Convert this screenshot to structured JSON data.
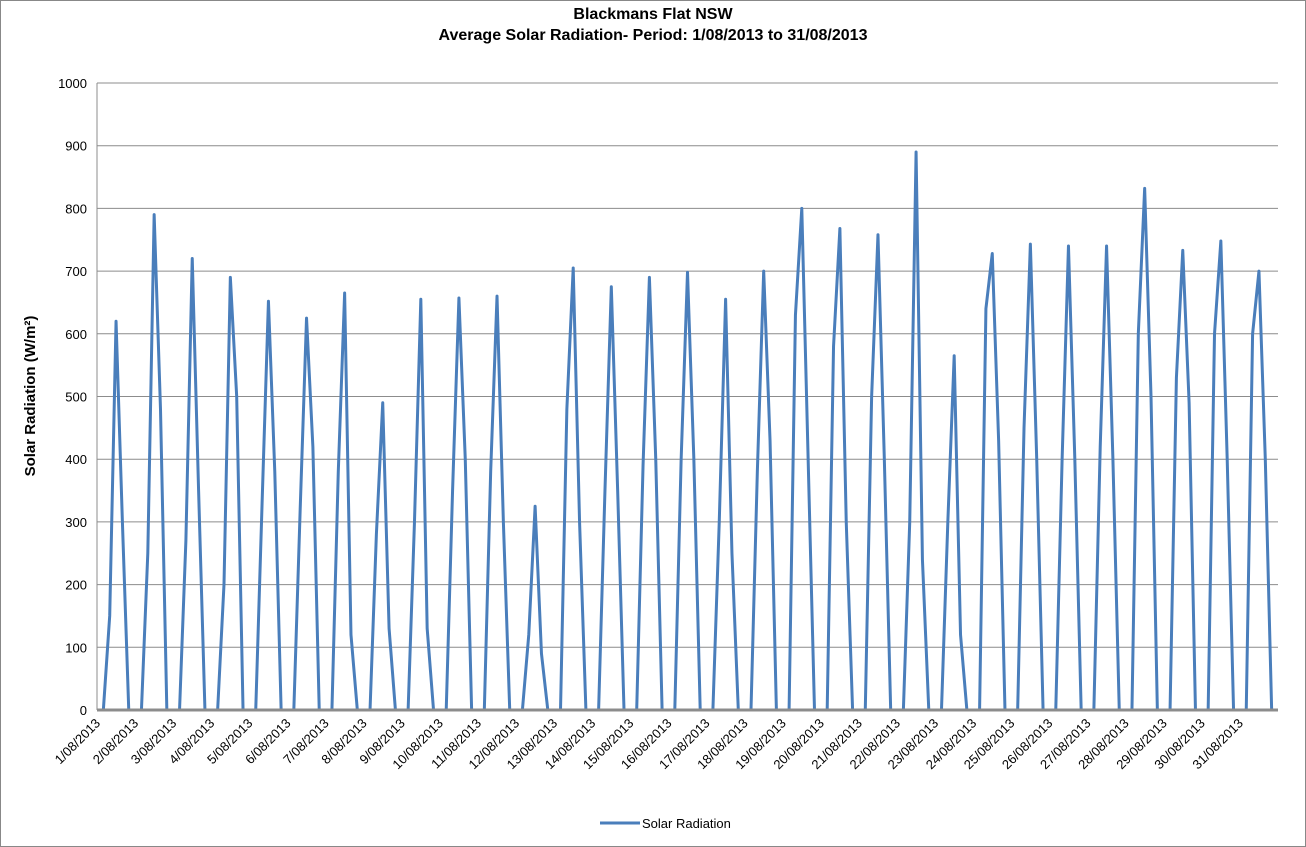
{
  "chart_data": {
    "type": "line",
    "title": "Blackmans Flat NSW",
    "subtitle": "Average Solar Radiation- Period: 1/08/2013 to 31/08/2013",
    "y_label": "Solar Radiation (W/m²)",
    "categories": [
      "1/08/2013",
      null,
      null,
      null,
      null,
      null,
      "2/08/2013",
      null,
      null,
      null,
      null,
      null,
      "3/08/2013",
      null,
      null,
      null,
      null,
      null,
      "4/08/2013",
      null,
      null,
      null,
      null,
      null,
      "5/08/2013",
      null,
      null,
      null,
      null,
      null,
      "6/08/2013",
      null,
      null,
      null,
      null,
      null,
      "7/08/2013",
      null,
      null,
      null,
      null,
      null,
      "8/08/2013",
      null,
      null,
      null,
      null,
      null,
      "9/08/2013",
      null,
      null,
      null,
      null,
      null,
      "10/08/2013",
      null,
      null,
      null,
      null,
      null,
      "11/08/2013",
      null,
      null,
      null,
      null,
      null,
      "12/08/2013",
      null,
      null,
      null,
      null,
      null,
      "13/08/2013",
      null,
      null,
      null,
      null,
      null,
      "14/08/2013",
      null,
      null,
      null,
      null,
      null,
      "15/08/2013",
      null,
      null,
      null,
      null,
      null,
      "16/08/2013",
      null,
      null,
      null,
      null,
      null,
      "17/08/2013",
      null,
      null,
      null,
      null,
      null,
      "18/08/2013",
      null,
      null,
      null,
      null,
      null,
      "19/08/2013",
      null,
      null,
      null,
      null,
      null,
      "20/08/2013",
      null,
      null,
      null,
      null,
      null,
      "21/08/2013",
      null,
      null,
      null,
      null,
      null,
      "22/08/2013",
      null,
      null,
      null,
      null,
      null,
      "23/08/2013",
      null,
      null,
      null,
      null,
      null,
      "24/08/2013",
      null,
      null,
      null,
      null,
      null,
      "25/08/2013",
      null,
      null,
      null,
      null,
      null,
      "26/08/2013",
      null,
      null,
      null,
      null,
      null,
      "27/08/2013",
      null,
      null,
      null,
      null,
      null,
      "28/08/2013",
      null,
      null,
      null,
      null,
      null,
      "29/08/2013",
      null,
      null,
      null,
      null,
      null,
      "30/08/2013",
      null,
      null,
      null,
      null,
      null,
      "31/08/2013",
      null,
      null,
      null,
      null,
      null
    ],
    "series": [
      {
        "name": "Solar Radiation",
        "color": "#4a7ebb",
        "values": [
          0,
          0,
          150,
          620,
          300,
          0,
          0,
          0,
          250,
          790,
          480,
          0,
          0,
          0,
          270,
          720,
          350,
          0,
          0,
          0,
          200,
          690,
          500,
          0,
          0,
          0,
          330,
          652,
          380,
          0,
          0,
          0,
          320,
          625,
          420,
          0,
          0,
          0,
          380,
          665,
          120,
          0,
          0,
          0,
          280,
          490,
          130,
          0,
          0,
          0,
          300,
          655,
          130,
          0,
          0,
          0,
          350,
          657,
          400,
          0,
          0,
          0,
          380,
          660,
          300,
          0,
          0,
          0,
          120,
          325,
          90,
          0,
          0,
          0,
          480,
          705,
          300,
          0,
          0,
          0,
          350,
          675,
          350,
          0,
          0,
          0,
          390,
          690,
          400,
          0,
          0,
          0,
          400,
          698,
          400,
          0,
          0,
          0,
          300,
          655,
          250,
          0,
          0,
          0,
          380,
          700,
          430,
          0,
          0,
          0,
          630,
          800,
          400,
          0,
          0,
          0,
          580,
          768,
          300,
          0,
          0,
          0,
          500,
          758,
          400,
          0,
          0,
          0,
          300,
          890,
          240,
          0,
          0,
          0,
          300,
          565,
          120,
          0,
          0,
          0,
          640,
          728,
          430,
          0,
          0,
          0,
          450,
          743,
          400,
          0,
          0,
          0,
          400,
          740,
          400,
          0,
          0,
          0,
          420,
          740,
          400,
          0,
          0,
          0,
          600,
          832,
          500,
          0,
          0,
          0,
          530,
          733,
          490,
          0,
          0,
          0,
          600,
          748,
          400,
          0,
          0,
          0,
          600,
          700,
          400,
          0
        ]
      }
    ],
    "ylim": [
      0,
      1000
    ],
    "yticks": [
      0,
      100,
      200,
      300,
      400,
      500,
      600,
      700,
      800,
      900,
      1000
    ],
    "grid": true,
    "legend": "bottom"
  }
}
